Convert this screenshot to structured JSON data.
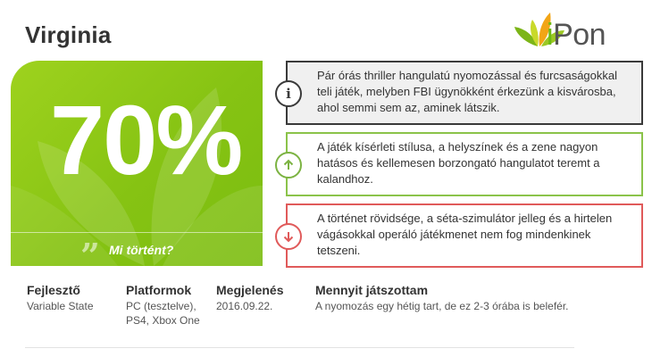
{
  "review": {
    "title": "Virginia",
    "score": "70%",
    "what_happened": "Mi történt?",
    "quote_icon": "quote-icon"
  },
  "logo": {
    "first": "i",
    "rest": "Pon",
    "brand_color": "#6cbb12"
  },
  "boxes": {
    "info": {
      "icon": "info-icon",
      "text": "Pár órás thriller hangulatú nyomozással és furcsaságokkal teli játék, melyben FBI ügynökként érkezünk a kisvárosba, ahol semmi sem az, aminek látszik."
    },
    "pro": {
      "icon": "arrow-up-icon",
      "text": "A játék kísérleti stílusa, a helyszínek és a zene nagyon hatásos és kellemesen borzongató hangulatot teremt a kalandhoz."
    },
    "con": {
      "icon": "arrow-down-icon",
      "text": "A történet rövidsége, a séta-szimulátor jelleg és a hirtelen vágásokkal operáló játékmenet nem fog mindenkinek tetszeni."
    }
  },
  "meta": {
    "developer": {
      "label": "Fejlesztő",
      "value": "Variable State"
    },
    "platforms": {
      "label": "Platformok",
      "line1": "PC (tesztelve),",
      "line2": "PS4, Xbox One"
    },
    "release": {
      "label": "Megjelenés",
      "value": "2016.09.22."
    },
    "played": {
      "label": "Mennyit játszottam",
      "value": "A nyomozás egy hétig tart, de ez 2-3 órába is belefér."
    }
  },
  "colors": {
    "green": "#86c313",
    "pro": "#7cb342",
    "con": "#e05a5a",
    "info": "#3a3a3a"
  }
}
